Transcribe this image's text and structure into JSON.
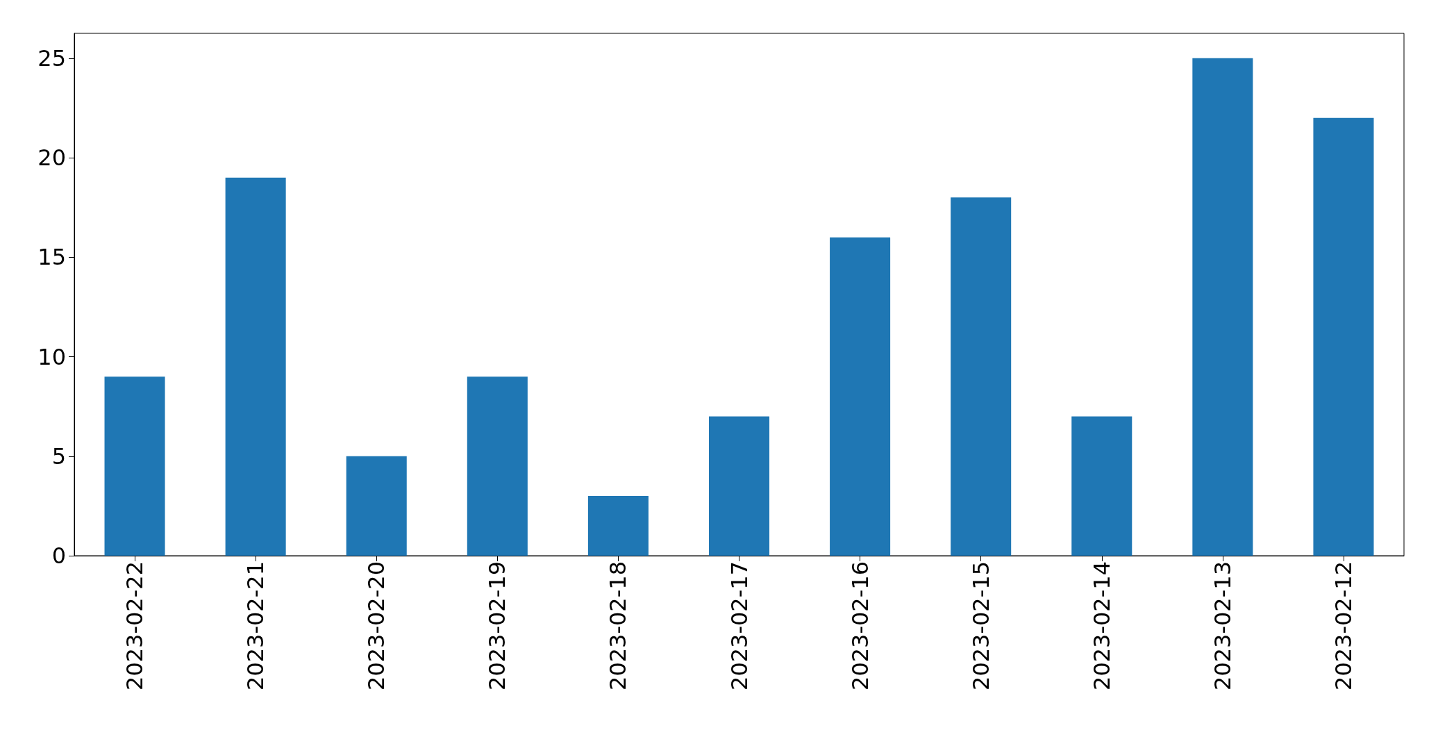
{
  "chart_data": {
    "type": "bar",
    "categories": [
      "2023-02-22",
      "2023-02-21",
      "2023-02-20",
      "2023-02-19",
      "2023-02-18",
      "2023-02-17",
      "2023-02-16",
      "2023-02-15",
      "2023-02-14",
      "2023-02-13",
      "2023-02-12"
    ],
    "values": [
      9,
      19,
      5,
      9,
      3,
      7,
      16,
      18,
      7,
      25,
      22
    ],
    "color": "#1f77b4",
    "ylim": [
      0,
      26.25
    ],
    "yticks": [
      0,
      5,
      10,
      15,
      20,
      25
    ],
    "grid": false
  }
}
